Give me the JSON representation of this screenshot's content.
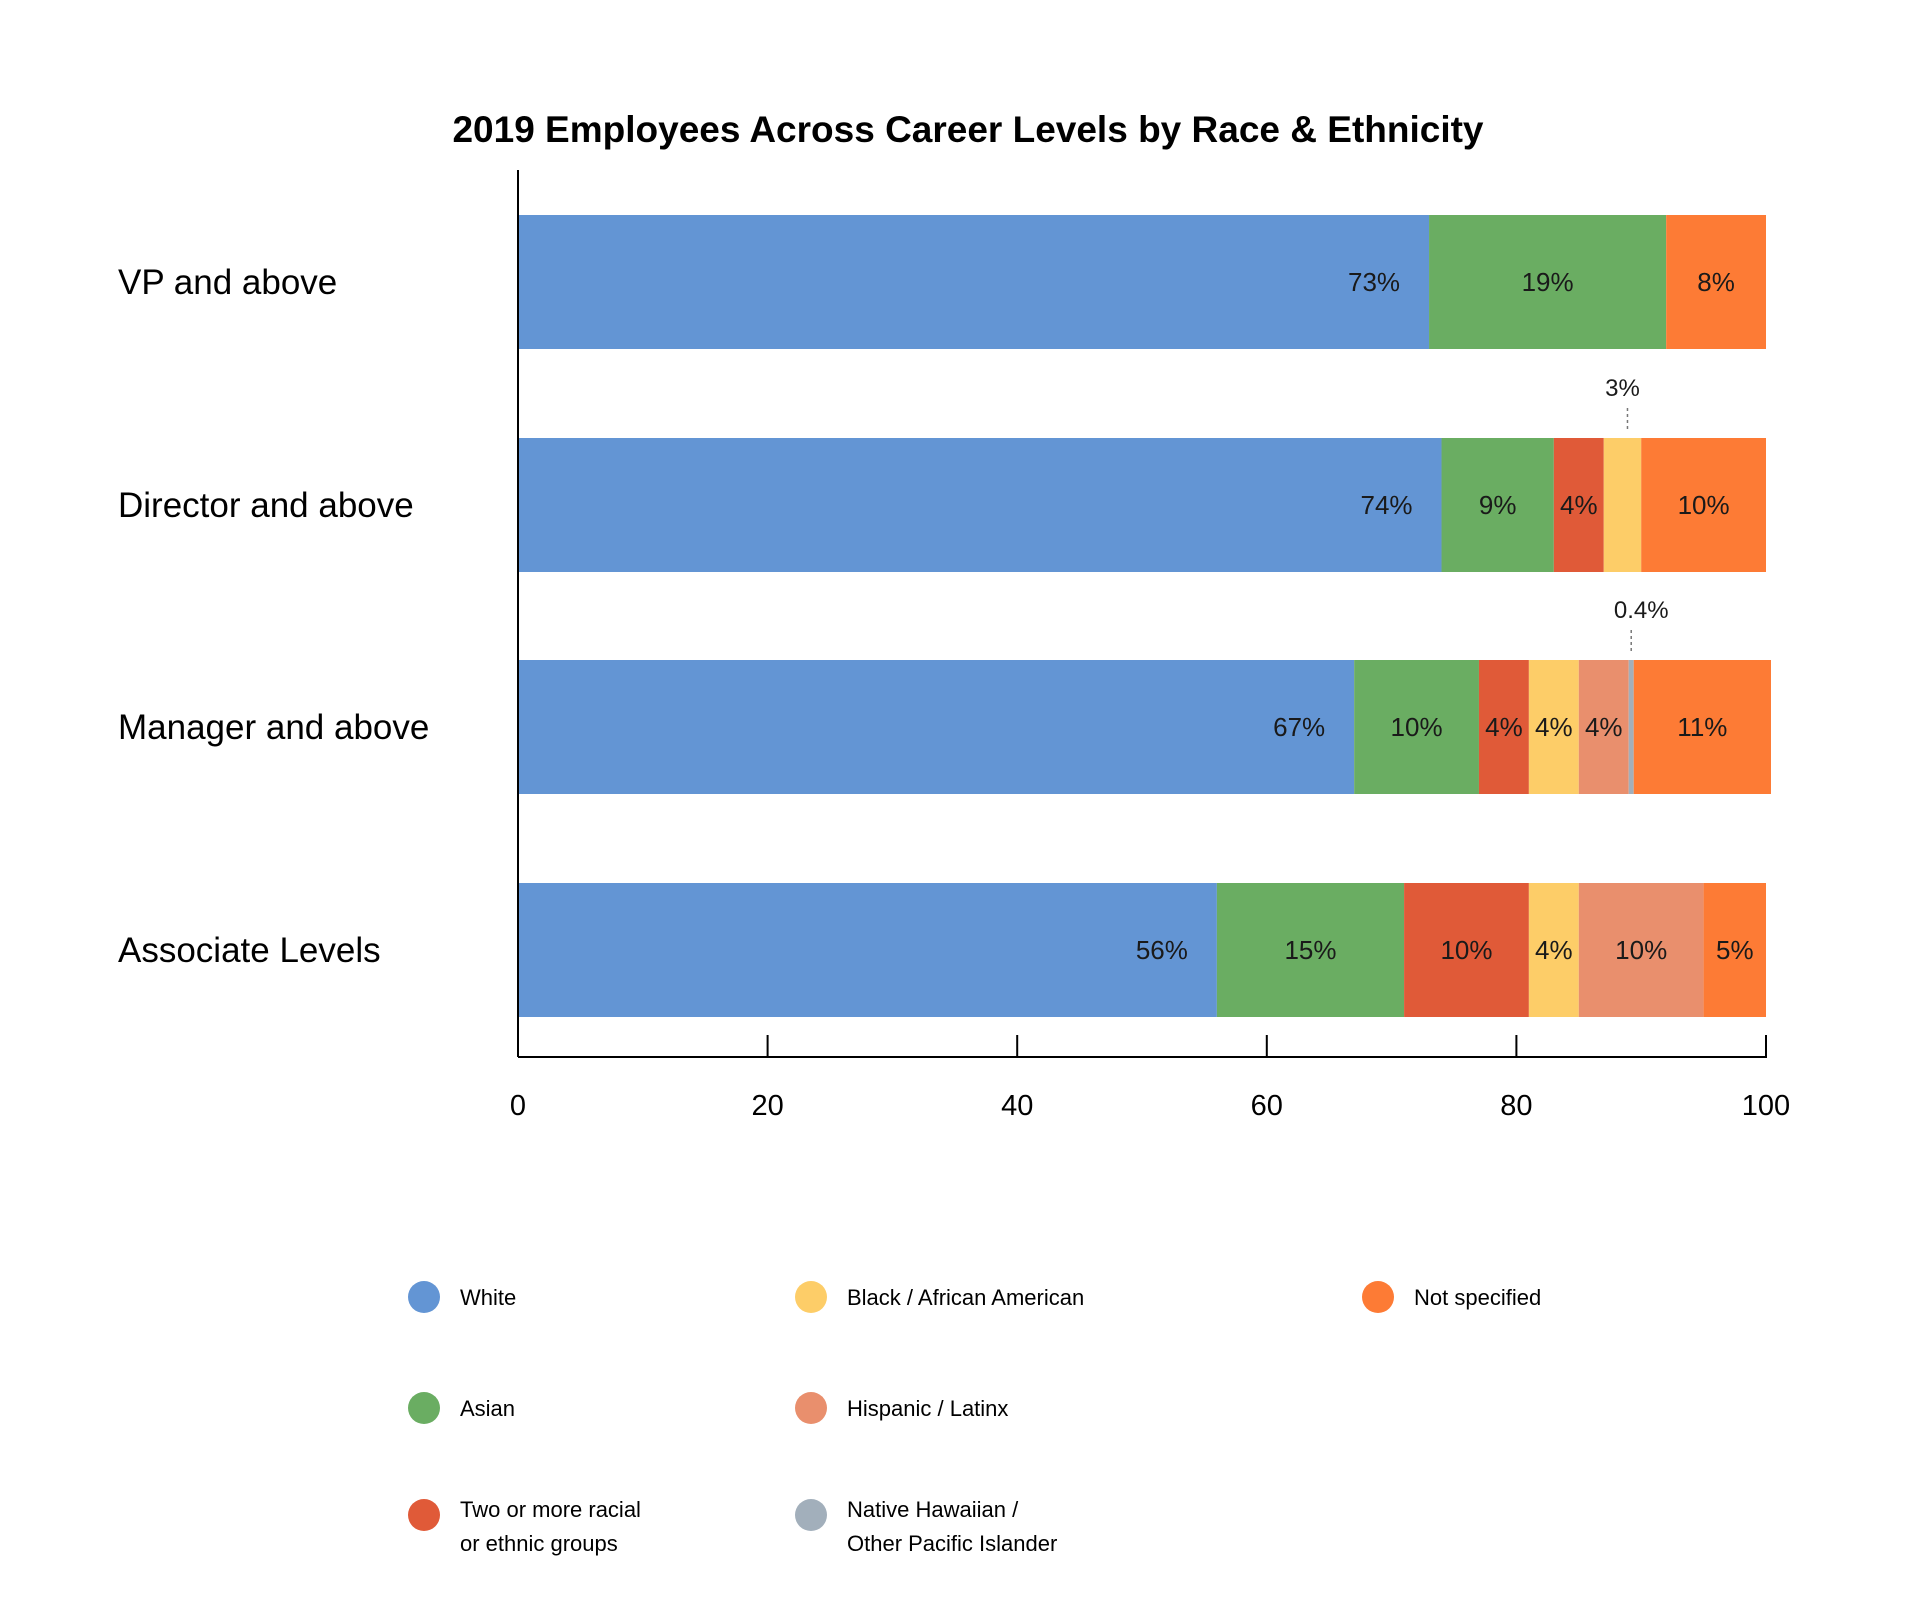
{
  "chart_data": {
    "type": "bar",
    "orientation": "horizontal",
    "stacked": true,
    "title": "2019 Employees Across Career Levels by Race & Ethnicity",
    "xlabel": "",
    "ylabel": "",
    "xlim": [
      0,
      100
    ],
    "x_ticks": [
      "0",
      "20",
      "40",
      "60",
      "80",
      "100"
    ],
    "grid": false,
    "legend_position": "bottom",
    "categories": [
      "VP and above",
      "Director and above",
      "Manager and above",
      "Associate Levels"
    ],
    "series": [
      {
        "name": "White",
        "color": "#6395d4",
        "values": [
          73,
          74,
          67,
          56
        ],
        "labels": [
          "73%",
          "74%",
          "67%",
          "56%"
        ]
      },
      {
        "name": "Asian",
        "color": "#6aad62",
        "values": [
          19,
          9,
          10,
          15
        ],
        "labels": [
          "19%",
          "9%",
          "10%",
          "15%"
        ]
      },
      {
        "name": "Two or more racial or ethnic groups",
        "color": "#e05a38",
        "values": [
          0,
          4,
          4,
          10
        ],
        "labels": [
          "",
          "4%",
          "4%",
          "10%"
        ]
      },
      {
        "name": "Black / African American",
        "color": "#fdcd68",
        "values": [
          0,
          3,
          4,
          4
        ],
        "labels": [
          "",
          "3%",
          "4%",
          "4%"
        ]
      },
      {
        "name": "Hispanic / Latinx",
        "color": "#e98f6d",
        "values": [
          0,
          0,
          4,
          10
        ],
        "labels": [
          "",
          "",
          "4%",
          "10%"
        ]
      },
      {
        "name": "Native Hawaiian / Other Pacific Islander",
        "color": "#a2afbb",
        "values": [
          0,
          0,
          0.4,
          0
        ],
        "labels": [
          "",
          "",
          "0.4%",
          ""
        ]
      },
      {
        "name": "Not specified",
        "color": "#fd7b35",
        "values": [
          8,
          10,
          11,
          5
        ],
        "labels": [
          "8%",
          "10%",
          "11%",
          "5%"
        ]
      }
    ],
    "callouts": [
      {
        "category": "Director and above",
        "series": "Black / African American",
        "text": "3%"
      },
      {
        "category": "Manager and above",
        "series": "Native Hawaiian / Other Pacific Islander",
        "text": "0.4%"
      }
    ]
  },
  "legend": [
    {
      "line1": "White",
      "line2": "",
      "color": "#6395d4"
    },
    {
      "line1": "Asian",
      "line2": "",
      "color": "#6aad62"
    },
    {
      "line1": "Two or more racial",
      "line2": "or ethnic groups",
      "color": "#e05a38"
    },
    {
      "line1": "Black / African American",
      "line2": "",
      "color": "#fdcd68"
    },
    {
      "line1": "Hispanic /  Latinx",
      "line2": "",
      "color": "#e98f6d"
    },
    {
      "line1": "Native Hawaiian /",
      "line2": "Other Pacific Islander",
      "color": "#a2afbb"
    },
    {
      "line1": "Not specified",
      "line2": "",
      "color": "#fd7b35"
    }
  ]
}
